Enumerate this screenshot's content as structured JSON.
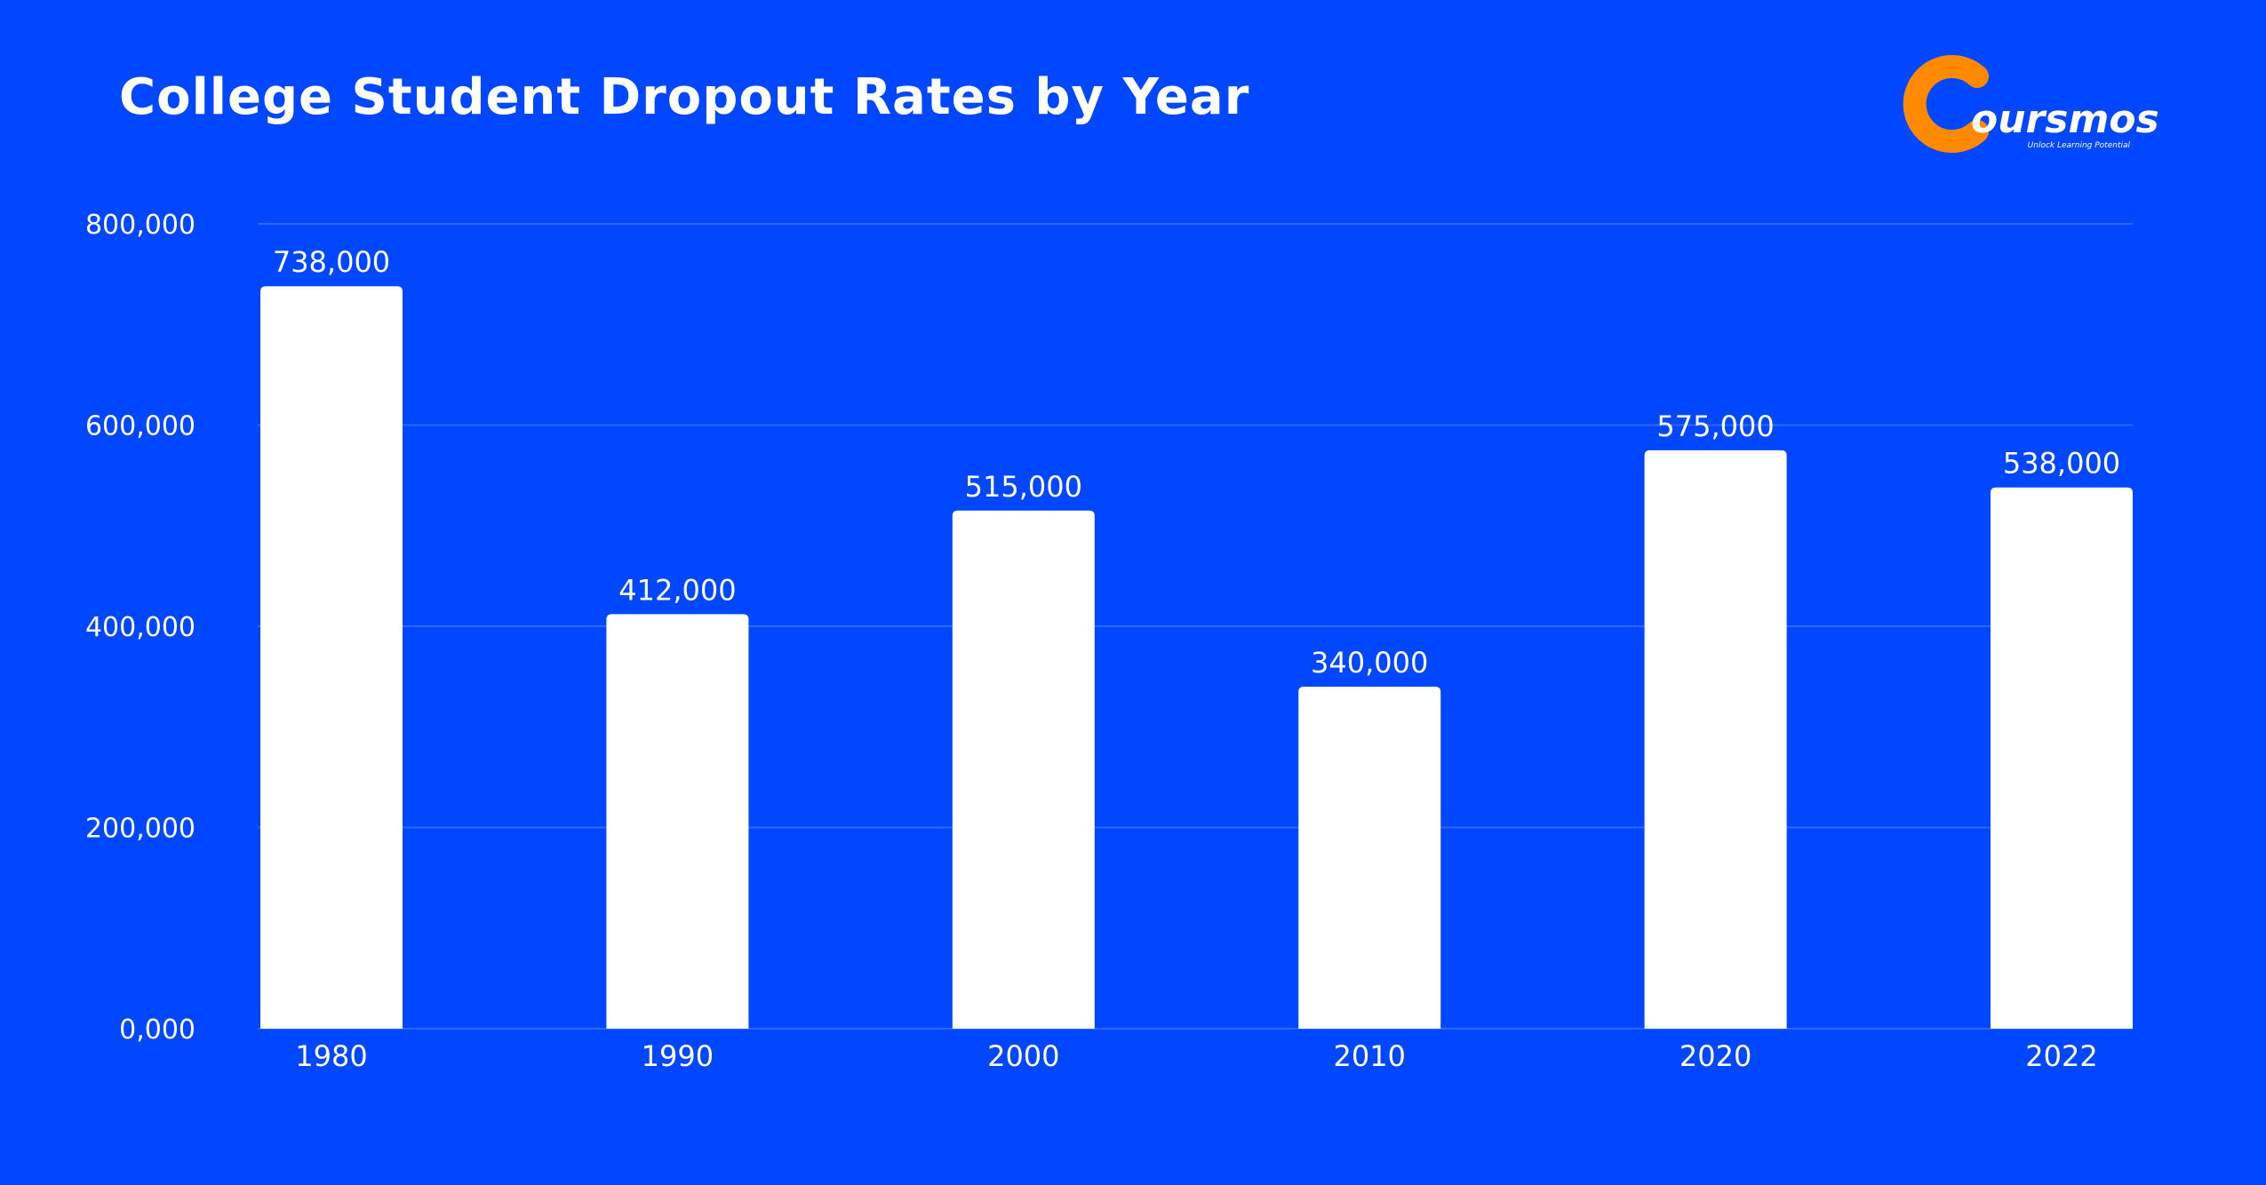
{
  "colors": {
    "background": "#0047FF",
    "bar": "#FFFFFF",
    "gridline": "#2F68FF",
    "logo_accent": "#FF8A00"
  },
  "logo": {
    "brand": "oursmos",
    "tagline": "Unlock Learning Potential",
    "icon": "orange-c-logo-icon"
  },
  "chart_data": {
    "type": "bar",
    "title": "College Student Dropout Rates by Year",
    "xlabel": "",
    "ylabel": "",
    "categories": [
      "1980",
      "1990",
      "2000",
      "2010",
      "2020",
      "2022"
    ],
    "values": [
      738000,
      412000,
      515000,
      340000,
      575000,
      538000
    ],
    "value_labels": [
      "738,000",
      "412,000",
      "515,000",
      "340,000",
      "575,000",
      "538,000"
    ],
    "ylim": [
      0,
      800000
    ],
    "yticks": [
      0,
      200000,
      400000,
      600000,
      800000
    ],
    "ytick_labels": [
      "0,000",
      "200,000",
      "400,000",
      "600,000",
      "800,000"
    ],
    "grid": true,
    "legend": "none"
  }
}
